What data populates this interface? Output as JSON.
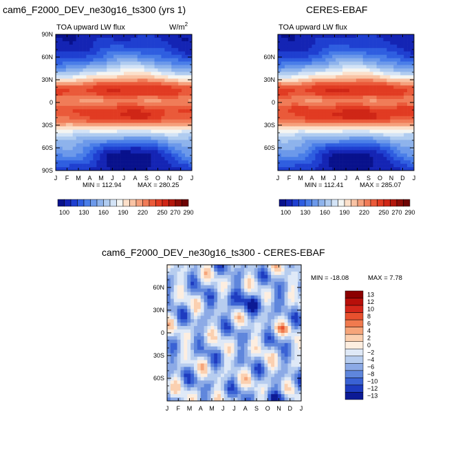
{
  "chart_data": [
    {
      "type": "heatmap",
      "title": "cam6_F2000_DEV_ne30g16_ts300 (yrs 1)",
      "subtitle": "TOA upward LW flux",
      "units": "W/m",
      "units_sup": "2",
      "x_ticks": [
        "J",
        "F",
        "M",
        "A",
        "M",
        "J",
        "J",
        "A",
        "S",
        "O",
        "N",
        "D",
        "J"
      ],
      "y_ticks": [
        "90N",
        "60N",
        "30N",
        "0",
        "30S",
        "60S",
        "90S"
      ],
      "ylim": [
        -90,
        90
      ],
      "min_label": "MIN = 112.94",
      "max_label": "MAX = 280.25",
      "colorbar_levels": [
        100,
        110,
        120,
        130,
        140,
        150,
        160,
        170,
        180,
        190,
        200,
        210,
        220,
        230,
        240,
        250,
        260,
        270,
        280,
        290
      ],
      "colorbar_labels": [
        "100",
        "130",
        "160",
        "190",
        "220",
        "250",
        "270",
        "290"
      ],
      "field": "model"
    },
    {
      "type": "heatmap",
      "title": "CERES-EBAF",
      "subtitle": "TOA upward LW flux",
      "x_ticks": [
        "J",
        "F",
        "M",
        "A",
        "M",
        "J",
        "J",
        "A",
        "S",
        "O",
        "N",
        "D",
        "J"
      ],
      "y_ticks": [
        "60N",
        "30N",
        "0",
        "30S",
        "60S"
      ],
      "ylim": [
        -90,
        90
      ],
      "min_label": "MIN = 112.41",
      "max_label": "MAX = 285.07",
      "colorbar_levels": [
        100,
        110,
        120,
        130,
        140,
        150,
        160,
        170,
        180,
        190,
        200,
        210,
        220,
        230,
        240,
        250,
        260,
        270,
        280,
        290
      ],
      "colorbar_labels": [
        "100",
        "130",
        "160",
        "190",
        "220",
        "250",
        "270",
        "290"
      ],
      "field": "obs"
    },
    {
      "type": "heatmap",
      "title": "cam6_F2000_DEV_ne30g16_ts300 - CERES-EBAF",
      "x_ticks": [
        "J",
        "F",
        "M",
        "A",
        "M",
        "J",
        "J",
        "A",
        "S",
        "O",
        "N",
        "D",
        "J"
      ],
      "y_ticks": [
        "60N",
        "30N",
        "0",
        "30S",
        "60S"
      ],
      "ylim": [
        -90,
        90
      ],
      "min_label": "MIN = -18.08",
      "max_label": "MAX =   7.78",
      "colorbar_levels": [
        13,
        12,
        10,
        8,
        6,
        4,
        2,
        0,
        -2,
        -4,
        -6,
        -8,
        -10,
        -12,
        -13
      ],
      "colorbar_labels": [
        "13",
        "12",
        "10",
        "8",
        "6",
        "4",
        "2",
        "0",
        "-2",
        "-4",
        "-6",
        "-8",
        "-10",
        "-12",
        "-13"
      ],
      "field": "diff"
    }
  ],
  "colors": {
    "abs_palette": [
      "#08118c",
      "#1424b4",
      "#1f3fd0",
      "#2f5ee0",
      "#4a7ee8",
      "#6c99ea",
      "#8eb3ec",
      "#b0ccf0",
      "#d3e3f6",
      "#f4f5f2",
      "#fce0ca",
      "#f9c3a4",
      "#f5a07c",
      "#f07c58",
      "#ea5a3a",
      "#e13b22",
      "#cf2616",
      "#b3170c",
      "#8c0c06",
      "#6e0404"
    ],
    "diff_palette": [
      "#8b0000",
      "#b80f0a",
      "#d4261a",
      "#e8502e",
      "#f07a4e",
      "#f6a57a",
      "#fbd0b0",
      "#fdeee0",
      "#dfe9f7",
      "#b7cdef",
      "#8caae6",
      "#5f86dc",
      "#3a62d4",
      "#1e3cc0",
      "#0c1a95"
    ]
  }
}
